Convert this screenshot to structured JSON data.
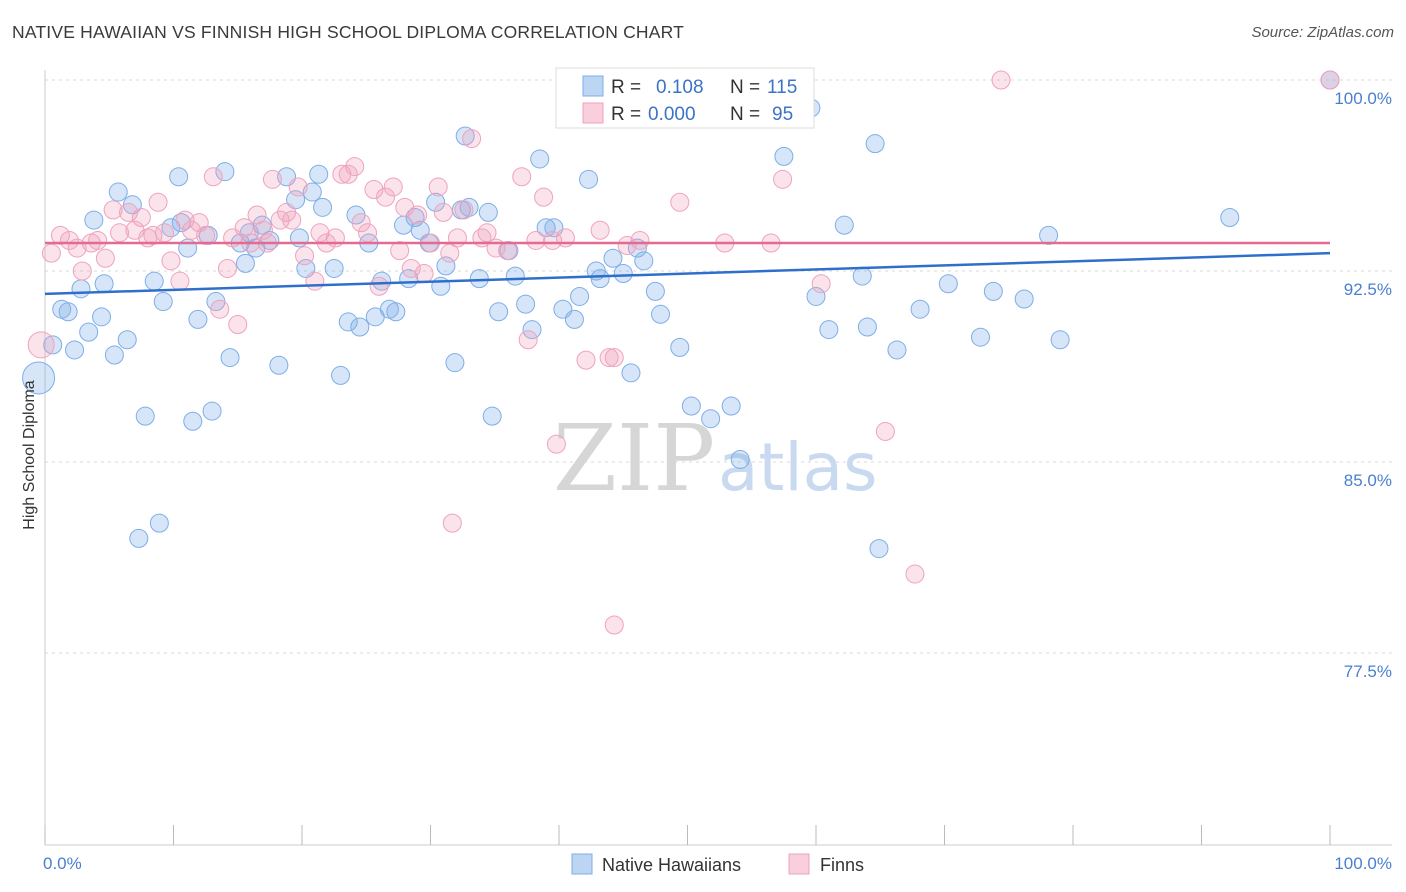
{
  "title": "NATIVE HAWAIIAN VS FINNISH HIGH SCHOOL DIPLOMA CORRELATION CHART",
  "source": "Source: ZipAtlas.com",
  "watermark": {
    "part1": "ZIP",
    "part2": "atlas"
  },
  "legend_top": {
    "rows": [
      {
        "r_label": "R =",
        "r_value": "0.108",
        "n_label": "N =",
        "n_value": "115"
      },
      {
        "r_label": "R =",
        "r_value": "0.000",
        "n_label": "N =",
        "n_value": "95"
      }
    ]
  },
  "legend_bottom": [
    "Native Hawaiians",
    "Finns"
  ],
  "chart_data": {
    "type": "scatter",
    "xlabel": "",
    "ylabel": "High School Diploma",
    "xlim": [
      0,
      100
    ],
    "ylim": [
      70.5,
      101.5
    ],
    "x_tick_labels": [
      "0.0%",
      "100.0%"
    ],
    "y_ticks": [
      {
        "value": 77.5,
        "label": "77.5%"
      },
      {
        "value": 85.0,
        "label": "85.0%"
      },
      {
        "value": 92.5,
        "label": "92.5%"
      },
      {
        "value": 100.0,
        "label": "100.0%"
      }
    ],
    "grid": "horizontal dashed",
    "legend": "top-center",
    "colors": {
      "Native Hawaiians": "#7eaee8",
      "Finns": "#f0a2bd",
      "blue_line": "#2f6fcc",
      "pink_line": "#e46a92"
    },
    "series": [
      {
        "name": "Native Hawaiians",
        "trend": {
          "x": [
            0,
            100
          ],
          "y": [
            91.6,
            93.2
          ]
        },
        "points": [
          [
            -0.5,
            88.3
          ],
          [
            0.6,
            89.6
          ],
          [
            1.3,
            91.0
          ],
          [
            1.8,
            90.9
          ],
          [
            2.3,
            89.4
          ],
          [
            2.8,
            91.8
          ],
          [
            3.4,
            90.1
          ],
          [
            3.8,
            94.5
          ],
          [
            4.4,
            90.7
          ],
          [
            4.6,
            92.0
          ],
          [
            5.4,
            89.2
          ],
          [
            5.7,
            95.6
          ],
          [
            6.4,
            89.8
          ],
          [
            6.8,
            95.1
          ],
          [
            7.3,
            82.0
          ],
          [
            7.8,
            86.8
          ],
          [
            8.5,
            92.1
          ],
          [
            8.9,
            82.6
          ],
          [
            9.2,
            91.3
          ],
          [
            9.8,
            94.2
          ],
          [
            10.4,
            96.2
          ],
          [
            10.6,
            94.4
          ],
          [
            11.1,
            93.4
          ],
          [
            11.5,
            86.6
          ],
          [
            11.9,
            90.6
          ],
          [
            12.7,
            93.9
          ],
          [
            13.0,
            87.0
          ],
          [
            13.3,
            91.3
          ],
          [
            14.0,
            96.4
          ],
          [
            14.4,
            89.1
          ],
          [
            15.2,
            93.6
          ],
          [
            15.6,
            92.8
          ],
          [
            15.9,
            94.0
          ],
          [
            16.4,
            93.4
          ],
          [
            16.9,
            94.3
          ],
          [
            17.5,
            93.7
          ],
          [
            18.2,
            88.8
          ],
          [
            18.8,
            96.2
          ],
          [
            19.5,
            95.3
          ],
          [
            19.8,
            93.8
          ],
          [
            20.3,
            92.6
          ],
          [
            20.8,
            95.6
          ],
          [
            21.3,
            96.3
          ],
          [
            21.6,
            95.0
          ],
          [
            22.5,
            92.6
          ],
          [
            23.0,
            88.4
          ],
          [
            23.6,
            90.5
          ],
          [
            24.2,
            94.7
          ],
          [
            24.5,
            90.3
          ],
          [
            25.2,
            93.6
          ],
          [
            25.7,
            90.7
          ],
          [
            26.2,
            92.1
          ],
          [
            26.8,
            91.0
          ],
          [
            27.3,
            90.9
          ],
          [
            27.9,
            94.3
          ],
          [
            28.3,
            92.2
          ],
          [
            28.8,
            94.6
          ],
          [
            29.2,
            94.1
          ],
          [
            29.9,
            93.6
          ],
          [
            30.4,
            95.2
          ],
          [
            30.8,
            91.9
          ],
          [
            31.2,
            92.7
          ],
          [
            31.9,
            88.9
          ],
          [
            32.4,
            94.9
          ],
          [
            32.7,
            97.8
          ],
          [
            33.0,
            95.0
          ],
          [
            33.8,
            92.2
          ],
          [
            34.5,
            94.8
          ],
          [
            34.8,
            86.8
          ],
          [
            35.3,
            90.9
          ],
          [
            36.1,
            93.3
          ],
          [
            36.6,
            92.3
          ],
          [
            37.4,
            91.2
          ],
          [
            37.9,
            90.2
          ],
          [
            38.5,
            96.9
          ],
          [
            39.0,
            94.2
          ],
          [
            39.6,
            94.2
          ],
          [
            40.3,
            91.0
          ],
          [
            41.2,
            90.6
          ],
          [
            41.6,
            91.5
          ],
          [
            42.3,
            96.1
          ],
          [
            42.9,
            92.5
          ],
          [
            43.2,
            92.2
          ],
          [
            44.2,
            93.0
          ],
          [
            45.0,
            92.4
          ],
          [
            45.6,
            88.5
          ],
          [
            46.1,
            93.4
          ],
          [
            46.6,
            92.9
          ],
          [
            47.5,
            91.7
          ],
          [
            47.9,
            90.8
          ],
          [
            49.4,
            89.5
          ],
          [
            50.3,
            87.2
          ],
          [
            51.8,
            86.7
          ],
          [
            53.4,
            87.2
          ],
          [
            54.1,
            85.1
          ],
          [
            57.5,
            97.0
          ],
          [
            59.6,
            98.9
          ],
          [
            60.0,
            91.5
          ],
          [
            61.0,
            90.2
          ],
          [
            62.2,
            94.3
          ],
          [
            63.6,
            92.3
          ],
          [
            64.0,
            90.3
          ],
          [
            64.6,
            97.5
          ],
          [
            64.9,
            81.6
          ],
          [
            66.3,
            89.4
          ],
          [
            68.1,
            91.0
          ],
          [
            70.3,
            92.0
          ],
          [
            72.8,
            89.9
          ],
          [
            73.8,
            91.7
          ],
          [
            76.2,
            91.4
          ],
          [
            78.1,
            93.9
          ],
          [
            79.0,
            89.8
          ],
          [
            92.2,
            94.6
          ],
          [
            100.0,
            100.0
          ]
        ]
      },
      {
        "name": "Finns",
        "trend": {
          "x": [
            0,
            100
          ],
          "y": [
            93.6,
            93.6
          ]
        },
        "points": [
          [
            -0.3,
            89.6
          ],
          [
            0.5,
            93.2
          ],
          [
            1.2,
            93.9
          ],
          [
            1.9,
            93.7
          ],
          [
            2.5,
            93.4
          ],
          [
            2.9,
            92.5
          ],
          [
            3.6,
            93.6
          ],
          [
            4.1,
            93.7
          ],
          [
            4.7,
            93.0
          ],
          [
            5.3,
            94.9
          ],
          [
            5.8,
            94.0
          ],
          [
            6.5,
            94.8
          ],
          [
            7.0,
            94.1
          ],
          [
            7.5,
            94.6
          ],
          [
            8.0,
            93.8
          ],
          [
            8.4,
            93.9
          ],
          [
            8.8,
            95.2
          ],
          [
            9.3,
            94.0
          ],
          [
            9.8,
            92.9
          ],
          [
            10.5,
            92.1
          ],
          [
            10.9,
            94.5
          ],
          [
            11.4,
            94.1
          ],
          [
            12.0,
            94.4
          ],
          [
            12.5,
            93.9
          ],
          [
            13.1,
            96.2
          ],
          [
            13.6,
            91.0
          ],
          [
            14.2,
            92.6
          ],
          [
            14.6,
            93.8
          ],
          [
            15.0,
            90.4
          ],
          [
            15.5,
            94.2
          ],
          [
            16.0,
            93.6
          ],
          [
            16.5,
            94.7
          ],
          [
            17.0,
            94.1
          ],
          [
            17.3,
            93.6
          ],
          [
            17.7,
            96.1
          ],
          [
            18.3,
            94.5
          ],
          [
            18.8,
            94.8
          ],
          [
            19.2,
            94.5
          ],
          [
            19.7,
            95.8
          ],
          [
            20.2,
            93.1
          ],
          [
            21.0,
            92.1
          ],
          [
            21.4,
            94.0
          ],
          [
            21.9,
            93.6
          ],
          [
            22.6,
            93.8
          ],
          [
            23.1,
            96.3
          ],
          [
            23.6,
            96.3
          ],
          [
            24.1,
            96.6
          ],
          [
            24.6,
            94.4
          ],
          [
            25.1,
            94.0
          ],
          [
            25.6,
            95.7
          ],
          [
            26.0,
            91.9
          ],
          [
            26.5,
            95.4
          ],
          [
            27.1,
            95.8
          ],
          [
            27.6,
            93.3
          ],
          [
            28.0,
            95.0
          ],
          [
            28.5,
            92.6
          ],
          [
            29.0,
            94.7
          ],
          [
            29.5,
            92.4
          ],
          [
            30.0,
            93.6
          ],
          [
            30.6,
            95.8
          ],
          [
            31.0,
            94.8
          ],
          [
            31.5,
            93.2
          ],
          [
            32.1,
            93.8
          ],
          [
            32.6,
            94.9
          ],
          [
            33.2,
            97.7
          ],
          [
            34.0,
            93.8
          ],
          [
            34.4,
            94.0
          ],
          [
            35.1,
            93.4
          ],
          [
            36.0,
            93.3
          ],
          [
            37.1,
            96.2
          ],
          [
            37.6,
            89.8
          ],
          [
            38.2,
            93.7
          ],
          [
            38.8,
            95.4
          ],
          [
            39.5,
            93.7
          ],
          [
            39.8,
            85.7
          ],
          [
            40.5,
            93.8
          ],
          [
            42.1,
            89.0
          ],
          [
            43.2,
            94.1
          ],
          [
            43.9,
            89.1
          ],
          [
            44.3,
            89.1
          ],
          [
            45.3,
            93.5
          ],
          [
            46.3,
            93.7
          ],
          [
            31.7,
            82.6
          ],
          [
            44.3,
            78.6
          ],
          [
            49.4,
            95.2
          ],
          [
            52.9,
            93.6
          ],
          [
            56.5,
            93.6
          ],
          [
            57.4,
            96.1
          ],
          [
            60.4,
            92.0
          ],
          [
            65.4,
            86.2
          ],
          [
            67.7,
            80.6
          ],
          [
            74.4,
            100.0
          ],
          [
            100.0,
            100.0
          ],
          [
            58.2,
            100.0
          ],
          [
            56.6,
            100.0
          ]
        ]
      }
    ]
  }
}
